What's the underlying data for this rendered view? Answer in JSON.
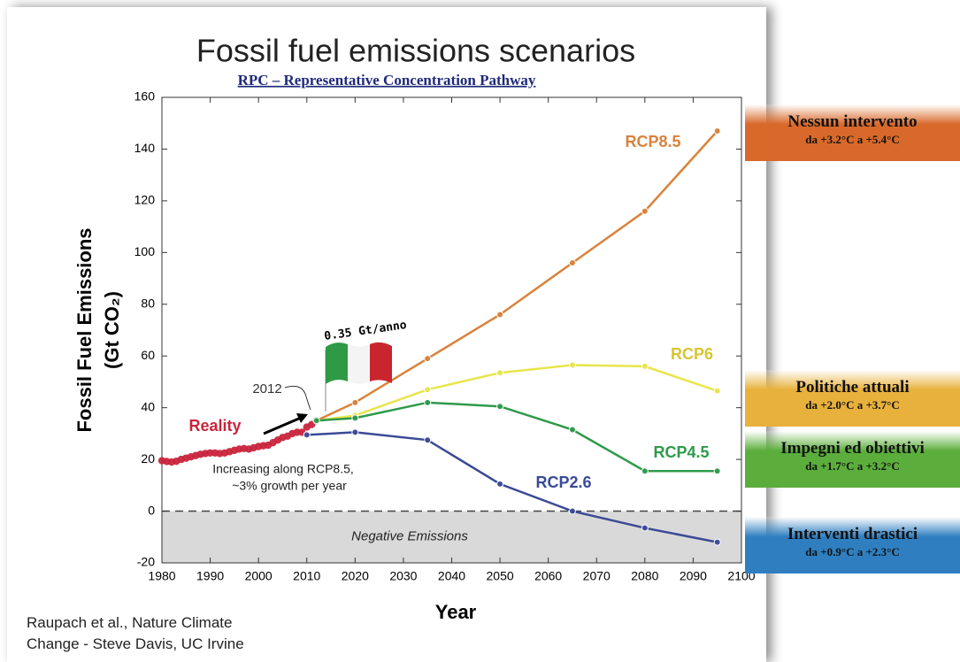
{
  "chart_data": {
    "type": "line",
    "title": "Fossil fuel emissions scenarios",
    "subtitle": "RPC – Representative Concentration Pathway",
    "x_label": "Year",
    "y_label": [
      "Fossil Fuel Emissions",
      "(Gt CO₂)"
    ],
    "xlim": [
      1980,
      2100
    ],
    "ylim": [
      -20,
      160
    ],
    "xticks": [
      1980,
      1990,
      2000,
      2010,
      2020,
      2030,
      2040,
      2050,
      2060,
      2070,
      2080,
      2090,
      2100
    ],
    "yticks": [
      -20,
      0,
      20,
      40,
      60,
      80,
      100,
      120,
      140,
      160
    ],
    "shaded_region": {
      "label": "Negative Emissions",
      "range": [
        -20,
        0
      ],
      "color": "#d9d9d9"
    },
    "series": [
      {
        "name": "Reality",
        "color": "#c8253c",
        "line": false,
        "x": [
          1980,
          1981,
          1982,
          1983,
          1984,
          1985,
          1986,
          1987,
          1988,
          1989,
          1990,
          1991,
          1992,
          1993,
          1994,
          1995,
          1996,
          1997,
          1998,
          1999,
          2000,
          2001,
          2002,
          2003,
          2004,
          2005,
          2006,
          2007,
          2008,
          2009,
          2010,
          2011,
          2012
        ],
        "values": [
          19.5,
          19.2,
          19,
          19.3,
          20,
          20.5,
          21,
          21.5,
          22,
          22.3,
          22.5,
          22.5,
          22.3,
          22.5,
          23,
          23.5,
          24,
          24.2,
          24,
          24.5,
          25,
          25.3,
          25.5,
          26.5,
          27.5,
          28.5,
          29,
          30,
          30.5,
          30.5,
          32.5,
          33.5,
          35
        ]
      },
      {
        "name": "RCP8.5",
        "color": "#d9823b",
        "line": true,
        "x": [
          2012,
          2020,
          2035,
          2050,
          2065,
          2080,
          2095
        ],
        "values": [
          35,
          42,
          59,
          76,
          96,
          116,
          147
        ]
      },
      {
        "name": "RCP6",
        "color": "#e8e54a",
        "label_color": "#d6c531",
        "line": true,
        "x": [
          2012,
          2020,
          2035,
          2050,
          2065,
          2080,
          2095
        ],
        "values": [
          35,
          37,
          47,
          53.5,
          56.5,
          56,
          46.5
        ]
      },
      {
        "name": "RCP4.5",
        "color": "#2e9a4a",
        "line": true,
        "x": [
          2012,
          2020,
          2035,
          2050,
          2065,
          2080,
          2095
        ],
        "values": [
          35,
          36,
          42,
          40.5,
          31.5,
          15.5,
          15.5
        ]
      },
      {
        "name": "RCP2.6",
        "color": "#3b4a96",
        "line": true,
        "x": [
          2010,
          2020,
          2035,
          2050,
          2065,
          2080,
          2095
        ],
        "values": [
          29.5,
          30.5,
          27.5,
          10.5,
          0,
          -6.5,
          -12
        ]
      }
    ],
    "annotations": {
      "year": "2012",
      "trend": [
        "Increasing along RCP8.5,",
        "~3% growth per year"
      ],
      "italy": "0.35 Gt/anno"
    }
  },
  "source": [
    "Raupach et al., Nature Climate",
    "Change - Steve Davis, UC Irvine"
  ],
  "panels": [
    {
      "title": "Nessun intervento",
      "range": "da +3.2°C a +5.4°C",
      "color": "#d9692a"
    },
    {
      "title": "Politiche attuali",
      "range": "da +2.0°C a +3.7°C",
      "color": "#e8b13c"
    },
    {
      "title": "Impegni ed obiettivi",
      "range": "da +1.7°C a +3.2°C",
      "color": "#5cae3c"
    },
    {
      "title": "Interventi drastici",
      "range": "da +0.9°C a +2.3°C",
      "color": "#2f7fc0"
    }
  ]
}
